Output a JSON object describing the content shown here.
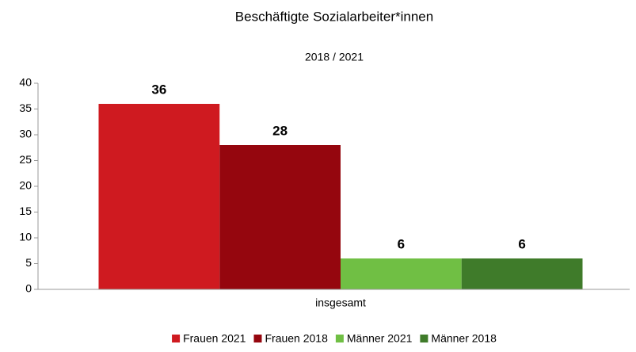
{
  "chart_data": {
    "type": "bar",
    "title": "Beschäftigte Sozialarbeiter*innen",
    "subtitle": "2018 / 2021",
    "categories": [
      "insgesamt"
    ],
    "series": [
      {
        "name": "Frauen 2021",
        "color": "#cf1a20",
        "values": [
          36
        ]
      },
      {
        "name": "Frauen 2018",
        "color": "#95060e",
        "values": [
          28
        ]
      },
      {
        "name": "Männer 2021",
        "color": "#70bf44",
        "values": [
          6
        ]
      },
      {
        "name": "Männer 2018",
        "color": "#3f7b2a",
        "values": [
          6
        ]
      }
    ],
    "ylim": [
      0,
      40
    ],
    "yticks": [
      0,
      5,
      10,
      15,
      20,
      25,
      30,
      35,
      40
    ],
    "grid": false,
    "legend": "bottom"
  }
}
